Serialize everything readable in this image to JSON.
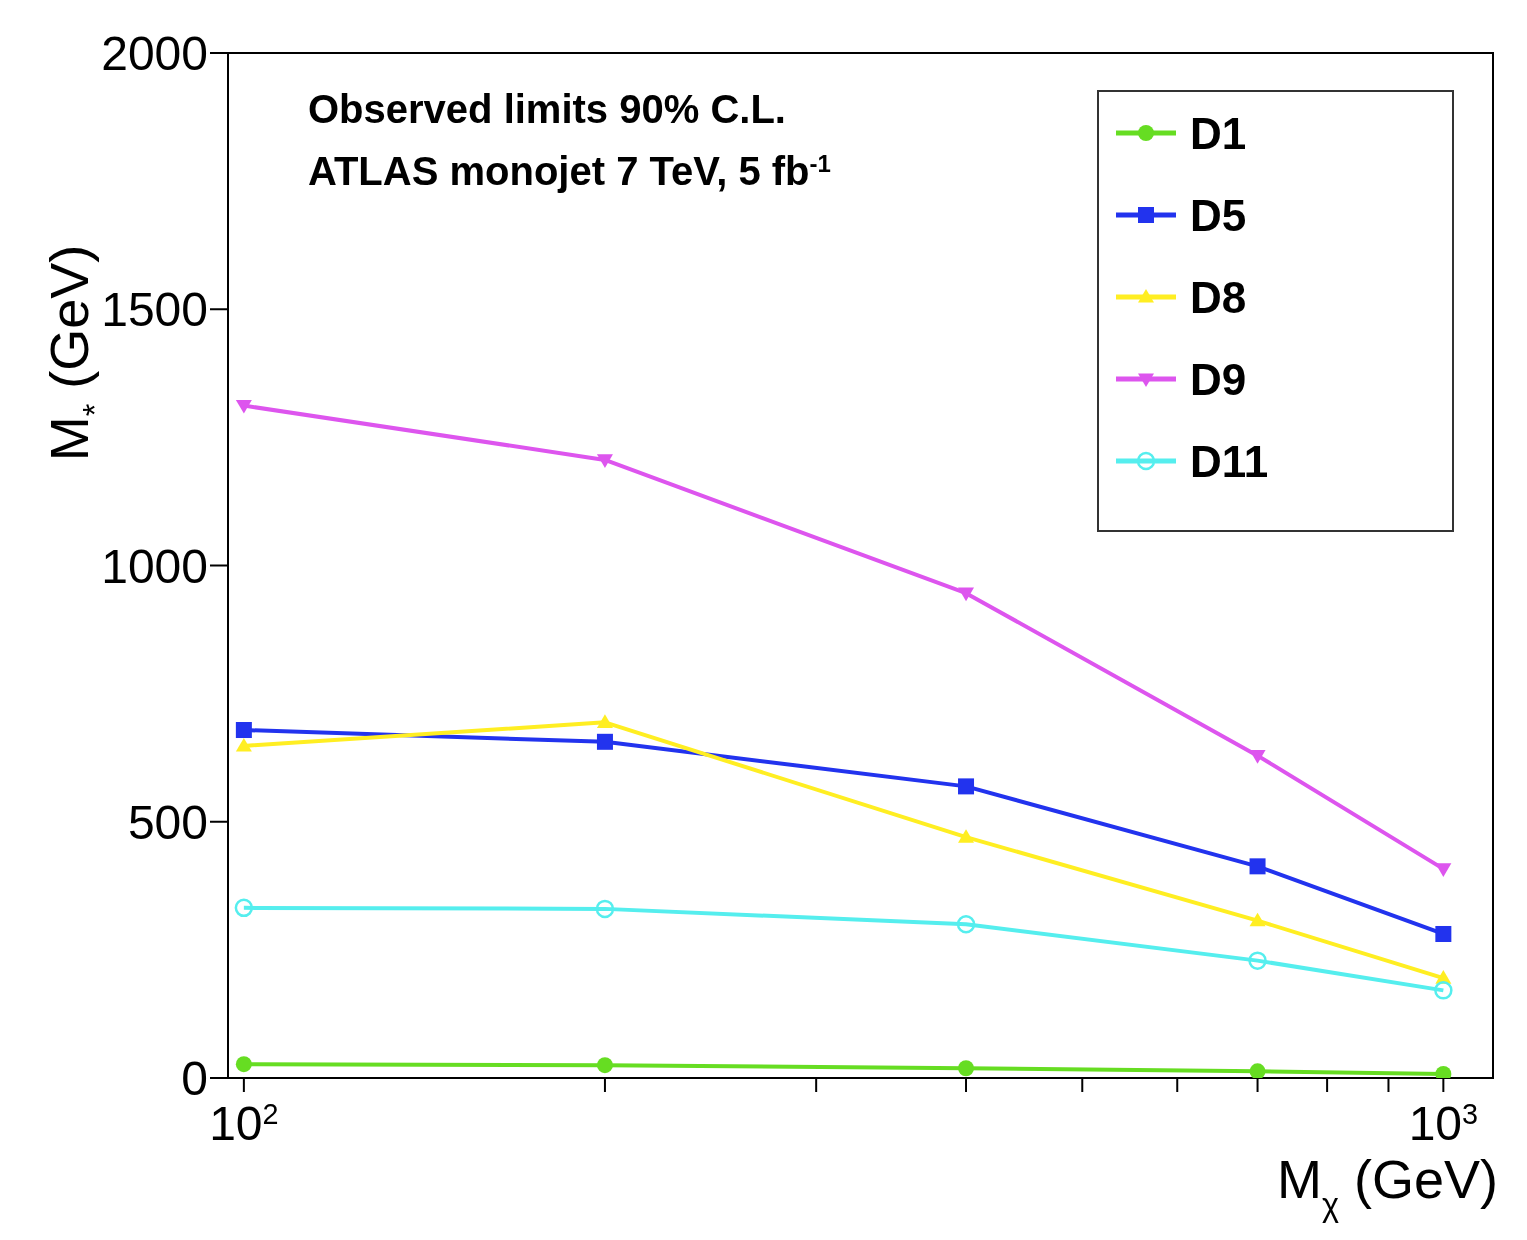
{
  "chart_data": {
    "type": "line",
    "xlabel": "M$_{χ}$ (GeV)",
    "ylabel": "M$_{*}$ (GeV)",
    "log": "x",
    "xlim": [
      97,
      1100
    ],
    "xticks": [
      {
        "value": 100,
        "label": "10$^{2}$"
      },
      {
        "value": 200,
        "label": null
      },
      {
        "value": 300,
        "label": null
      },
      {
        "value": 400,
        "label": null
      },
      {
        "value": 500,
        "label": null
      },
      {
        "value": 600,
        "label": null
      },
      {
        "value": 700,
        "label": null
      },
      {
        "value": 800,
        "label": null
      },
      {
        "value": 900,
        "label": null
      },
      {
        "value": 1000,
        "label": "10$^{3}$"
      }
    ],
    "ylim": [
      0,
      2000
    ],
    "yticks": [
      0,
      500,
      1000,
      1500,
      2000
    ],
    "grid": false,
    "legend": "top right",
    "line_style": "solid",
    "annotations": [
      "Observed limits 90% C.L.",
      "ATLAS monojet 7 TeV, 5 fb$^{-1}$"
    ],
    "x": [
      100,
      200,
      400,
      700,
      1000
    ],
    "series": [
      {
        "name": "D1",
        "color": "#66dd22",
        "marker": "circle",
        "values": [
          27,
          25,
          19,
          13,
          8
        ]
      },
      {
        "name": "D5",
        "color": "#2233ee",
        "marker": "square",
        "values": [
          679,
          656,
          569,
          413,
          281
        ]
      },
      {
        "name": "D8",
        "color": "#ffee22",
        "marker": "triangle",
        "values": [
          648,
          694,
          470,
          307,
          195
        ]
      },
      {
        "name": "D9",
        "color": "#dd55ee",
        "marker": "triangle-down",
        "values": [
          1312,
          1206,
          946,
          629,
          408
        ]
      },
      {
        "name": "D11",
        "color": "#55eeee",
        "marker": "open-circle",
        "values": [
          332,
          330,
          300,
          229,
          171
        ]
      }
    ]
  }
}
